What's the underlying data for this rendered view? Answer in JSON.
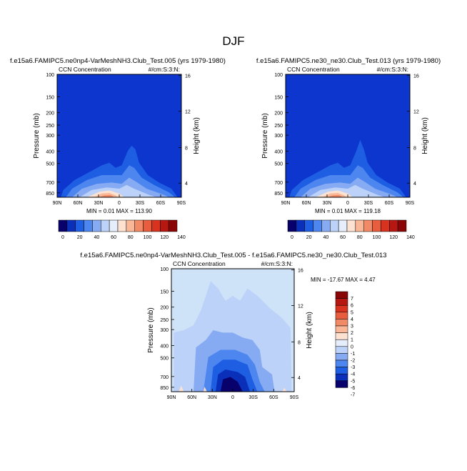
{
  "figure": {
    "title": "DJF"
  },
  "colors": {
    "plot_bg": "#0d36cf",
    "diff_bg": "#cfe3f8",
    "frame": "#000000",
    "text": "#000000"
  },
  "chart_data": [
    {
      "id": "panel-left",
      "type": "heatmap",
      "title": "f.e15a6.FAMIPC5.ne0np4-VarMeshNH3.Club_Test.005 (yrs 1979-1980)",
      "subtitle_left": "CCN Concentration",
      "subtitle_right": "#/cm:S:3:N:",
      "xlabel": "",
      "ylabel": "Pressure (mb)",
      "ylabel_right": "Height (km)",
      "x_ticks": [
        "90N",
        "60N",
        "30N",
        "0",
        "30S",
        "60S",
        "90S"
      ],
      "y_ticks": [
        "100",
        "150",
        "200",
        "250",
        "300",
        "400",
        "500",
        "700",
        "850"
      ],
      "y_right_ticks": [
        "16",
        "12",
        "8",
        "4"
      ],
      "stats": "MIN =   0.01   MAX = 113.90",
      "colorbar_ticks": [
        "0",
        "20",
        "40",
        "60",
        "80",
        "100",
        "120",
        "140"
      ],
      "colorbar_colors": [
        "#08006b",
        "#0a2fb8",
        "#1d5ee3",
        "#4d86ef",
        "#86abf3",
        "#bcd2f8",
        "#e6eefb",
        "#fde2d2",
        "#f9b798",
        "#f28a67",
        "#e85d3e",
        "#d7331f",
        "#b71711",
        "#8a0606"
      ]
    },
    {
      "id": "panel-right",
      "type": "heatmap",
      "title": "f.e15a6.FAMIPC5.ne30_ne30.Club_Test.013 (yrs 1979-1980)",
      "subtitle_left": "CCN Concentration",
      "subtitle_right": "#/cm:S:3:N:",
      "xlabel": "",
      "ylabel": "Pressure (mb)",
      "ylabel_right": "Height (km)",
      "x_ticks": [
        "90N",
        "60N",
        "30N",
        "0",
        "30S",
        "60S",
        "90S"
      ],
      "y_ticks": [
        "100",
        "150",
        "200",
        "250",
        "300",
        "400",
        "500",
        "700",
        "850"
      ],
      "y_right_ticks": [
        "16",
        "12",
        "8",
        "4"
      ],
      "stats": "MIN =   0.01   MAX = 119.18",
      "colorbar_ticks": [
        "0",
        "20",
        "40",
        "60",
        "80",
        "100",
        "120",
        "140"
      ],
      "colorbar_colors": [
        "#08006b",
        "#0a2fb8",
        "#1d5ee3",
        "#4d86ef",
        "#86abf3",
        "#bcd2f8",
        "#e6eefb",
        "#fde2d2",
        "#f9b798",
        "#f28a67",
        "#e85d3e",
        "#d7331f",
        "#b71711",
        "#8a0606"
      ]
    },
    {
      "id": "panel-diff",
      "type": "heatmap",
      "title": "f.e15a6.FAMIPC5.ne0np4-VarMeshNH3.Club_Test.005 - f.e15a6.FAMIPC5.ne30_ne30.Club_Test.013",
      "subtitle_left": "CCN Concentration",
      "subtitle_right": "#/cm:S:3:N:",
      "xlabel": "",
      "ylabel": "Pressure (mb)",
      "ylabel_right": "Height (km)",
      "x_ticks": [
        "90N",
        "60N",
        "30N",
        "0",
        "30S",
        "60S",
        "90S"
      ],
      "y_ticks": [
        "100",
        "150",
        "200",
        "250",
        "300",
        "400",
        "500",
        "700",
        "850"
      ],
      "y_right_ticks": [
        "16",
        "12",
        "8",
        "4"
      ],
      "stats": "MIN = -17.67   MAX =   4.47",
      "legend_labels": [
        "7",
        "6",
        "5",
        "4",
        "3",
        "2",
        "1",
        "0",
        "-1",
        "-2",
        "-3",
        "-4",
        "-5",
        "-6",
        "-7"
      ],
      "legend_colors": [
        "#8a0606",
        "#b71711",
        "#d7331f",
        "#e85d3e",
        "#f28a67",
        "#f9b798",
        "#fde2d2",
        "#e6eefb",
        "#bcd2f8",
        "#86abf3",
        "#4d86ef",
        "#1d5ee3",
        "#0a2fb8",
        "#08006b"
      ]
    }
  ]
}
